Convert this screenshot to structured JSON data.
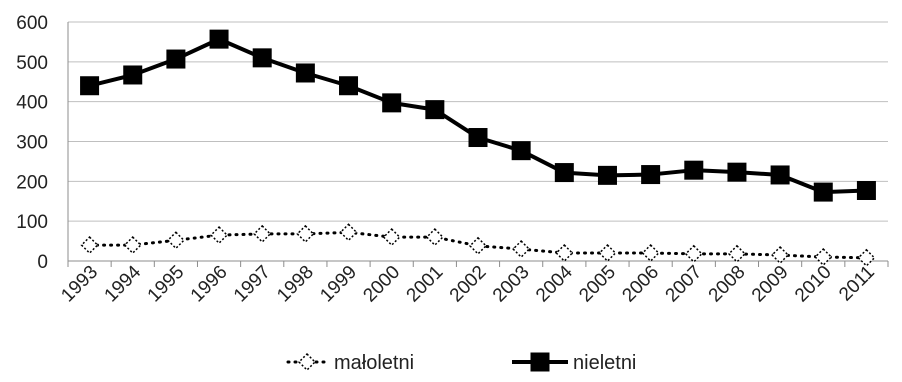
{
  "chart_data": {
    "type": "line",
    "title": "",
    "xlabel": "",
    "ylabel": "",
    "x": [
      "1993",
      "1994",
      "1995",
      "1996",
      "1997",
      "1998",
      "1999",
      "2000",
      "2001",
      "2002",
      "2003",
      "2004",
      "2005",
      "2006",
      "2007",
      "2008",
      "2009",
      "2010",
      "2011"
    ],
    "ylim": [
      0,
      600
    ],
    "yticks": [
      "0",
      "100",
      "200",
      "300",
      "400",
      "500",
      "600"
    ],
    "grid": true,
    "legend_position": "bottom",
    "series": [
      {
        "name": "małoletni",
        "style": "dotted",
        "marker": "diamond-open",
        "color": "#000000",
        "values": [
          40,
          40,
          52,
          65,
          68,
          68,
          72,
          60,
          60,
          38,
          30,
          20,
          20,
          20,
          18,
          18,
          15,
          10,
          8
        ]
      },
      {
        "name": "nieletni",
        "style": "solid",
        "marker": "square-filled",
        "color": "#000000",
        "values": [
          440,
          467,
          507,
          557,
          510,
          472,
          440,
          397,
          380,
          310,
          277,
          222,
          215,
          217,
          228,
          223,
          216,
          173,
          177
        ]
      }
    ]
  }
}
